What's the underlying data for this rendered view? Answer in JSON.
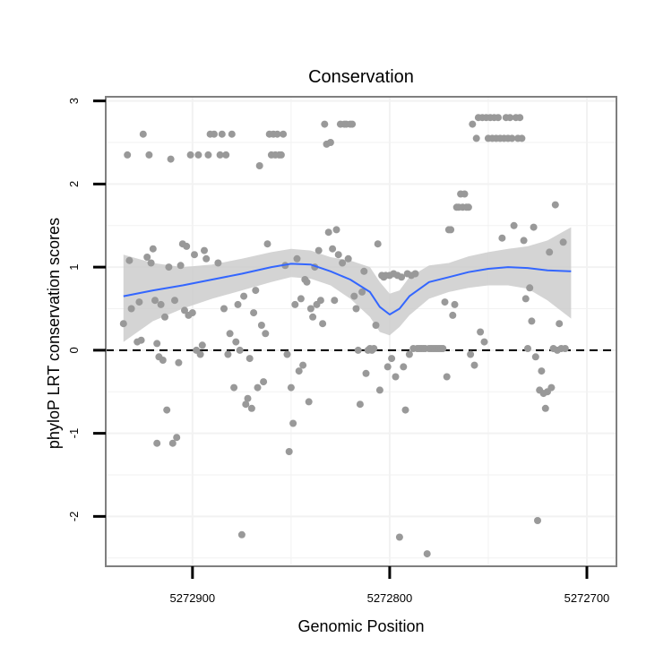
{
  "chart_data": {
    "type": "scatter",
    "title": "Conservation",
    "xlabel": "Genomic Position",
    "ylabel": "phyloP LRT conservation scores",
    "x_reversed": true,
    "xlim": [
      5272944,
      5272685
    ],
    "ylim": [
      -2.6,
      3.05
    ],
    "x_ticks": [
      5272900,
      5272800,
      5272700
    ],
    "y_ticks": [
      -2,
      -1,
      0,
      1,
      2,
      3
    ],
    "grid": true,
    "colors": {
      "points": "#999999",
      "smooth_line": "#3366ff",
      "confidence_band": "#cccccc",
      "reference_line": "#000000",
      "panel_border": "#7f7f7f",
      "grid": "#f2f2f2"
    },
    "reference_line": {
      "y": 0,
      "style": "dashed"
    },
    "points": [
      {
        "x": 5272935,
        "y": 0.32
      },
      {
        "x": 5272933,
        "y": 2.35
      },
      {
        "x": 5272932,
        "y": 1.08
      },
      {
        "x": 5272931,
        "y": 0.5
      },
      {
        "x": 5272928,
        "y": 0.1
      },
      {
        "x": 5272927,
        "y": 0.58
      },
      {
        "x": 5272926,
        "y": 0.12
      },
      {
        "x": 5272925,
        "y": 2.6
      },
      {
        "x": 5272923,
        "y": 1.12
      },
      {
        "x": 5272922,
        "y": 2.35
      },
      {
        "x": 5272921,
        "y": 1.05
      },
      {
        "x": 5272920,
        "y": 1.22
      },
      {
        "x": 5272919,
        "y": 0.6
      },
      {
        "x": 5272918,
        "y": 0.08
      },
      {
        "x": 5272918,
        "y": -1.12
      },
      {
        "x": 5272917,
        "y": -0.08
      },
      {
        "x": 5272916,
        "y": 0.55
      },
      {
        "x": 5272915,
        "y": -0.12
      },
      {
        "x": 5272914,
        "y": 0.4
      },
      {
        "x": 5272913,
        "y": -0.72
      },
      {
        "x": 5272912,
        "y": 1.0
      },
      {
        "x": 5272911,
        "y": 2.3
      },
      {
        "x": 5272910,
        "y": -1.12
      },
      {
        "x": 5272909,
        "y": 0.6
      },
      {
        "x": 5272908,
        "y": -1.05
      },
      {
        "x": 5272907,
        "y": -0.15
      },
      {
        "x": 5272906,
        "y": 1.02
      },
      {
        "x": 5272905,
        "y": 1.28
      },
      {
        "x": 5272904,
        "y": 0.48
      },
      {
        "x": 5272903,
        "y": 1.25
      },
      {
        "x": 5272902,
        "y": 0.42
      },
      {
        "x": 5272901,
        "y": 2.35
      },
      {
        "x": 5272900,
        "y": 0.45
      },
      {
        "x": 5272899,
        "y": 1.15
      },
      {
        "x": 5272898,
        "y": 0.0
      },
      {
        "x": 5272897,
        "y": 2.35
      },
      {
        "x": 5272896,
        "y": -0.05
      },
      {
        "x": 5272895,
        "y": 0.06
      },
      {
        "x": 5272894,
        "y": 1.2
      },
      {
        "x": 5272893,
        "y": 1.1
      },
      {
        "x": 5272892,
        "y": 2.35
      },
      {
        "x": 5272891,
        "y": 2.6
      },
      {
        "x": 5272889,
        "y": 2.6
      },
      {
        "x": 5272887,
        "y": 1.05
      },
      {
        "x": 5272886,
        "y": 2.35
      },
      {
        "x": 5272885,
        "y": 2.6
      },
      {
        "x": 5272884,
        "y": 0.5
      },
      {
        "x": 5272883,
        "y": 2.35
      },
      {
        "x": 5272882,
        "y": -0.05
      },
      {
        "x": 5272881,
        "y": 0.2
      },
      {
        "x": 5272880,
        "y": 2.6
      },
      {
        "x": 5272879,
        "y": -0.45
      },
      {
        "x": 5272878,
        "y": 0.1
      },
      {
        "x": 5272877,
        "y": 0.55
      },
      {
        "x": 5272876,
        "y": 0.0
      },
      {
        "x": 5272875,
        "y": -2.22
      },
      {
        "x": 5272874,
        "y": 0.65
      },
      {
        "x": 5272873,
        "y": -0.65
      },
      {
        "x": 5272872,
        "y": -0.58
      },
      {
        "x": 5272871,
        "y": -0.1
      },
      {
        "x": 5272870,
        "y": -0.7
      },
      {
        "x": 5272869,
        "y": 0.45
      },
      {
        "x": 5272868,
        "y": 0.72
      },
      {
        "x": 5272867,
        "y": -0.45
      },
      {
        "x": 5272866,
        "y": 2.22
      },
      {
        "x": 5272865,
        "y": 0.3
      },
      {
        "x": 5272864,
        "y": -0.38
      },
      {
        "x": 5272863,
        "y": 0.2
      },
      {
        "x": 5272862,
        "y": 1.28
      },
      {
        "x": 5272861,
        "y": 2.6
      },
      {
        "x": 5272860,
        "y": 2.35
      },
      {
        "x": 5272859,
        "y": 2.6
      },
      {
        "x": 5272858,
        "y": 2.35
      },
      {
        "x": 5272857,
        "y": 2.6
      },
      {
        "x": 5272856,
        "y": 2.35
      },
      {
        "x": 5272855,
        "y": 2.35
      },
      {
        "x": 5272854,
        "y": 2.6
      },
      {
        "x": 5272853,
        "y": 1.02
      },
      {
        "x": 5272852,
        "y": -0.05
      },
      {
        "x": 5272851,
        "y": -1.22
      },
      {
        "x": 5272850,
        "y": -0.45
      },
      {
        "x": 5272849,
        "y": -0.88
      },
      {
        "x": 5272848,
        "y": 0.55
      },
      {
        "x": 5272847,
        "y": 1.1
      },
      {
        "x": 5272846,
        "y": -0.25
      },
      {
        "x": 5272845,
        "y": 0.62
      },
      {
        "x": 5272844,
        "y": -0.18
      },
      {
        "x": 5272843,
        "y": 0.85
      },
      {
        "x": 5272842,
        "y": 0.82
      },
      {
        "x": 5272841,
        "y": -0.62
      },
      {
        "x": 5272840,
        "y": 0.5
      },
      {
        "x": 5272839,
        "y": 0.4
      },
      {
        "x": 5272838,
        "y": 1.0
      },
      {
        "x": 5272837,
        "y": 0.55
      },
      {
        "x": 5272836,
        "y": 1.2
      },
      {
        "x": 5272835,
        "y": 0.6
      },
      {
        "x": 5272834,
        "y": 0.32
      },
      {
        "x": 5272833,
        "y": 2.72
      },
      {
        "x": 5272832,
        "y": 2.48
      },
      {
        "x": 5272831,
        "y": 1.42
      },
      {
        "x": 5272830,
        "y": 2.5
      },
      {
        "x": 5272829,
        "y": 1.22
      },
      {
        "x": 5272828,
        "y": 0.6
      },
      {
        "x": 5272827,
        "y": 1.45
      },
      {
        "x": 5272826,
        "y": 1.15
      },
      {
        "x": 5272825,
        "y": 2.72
      },
      {
        "x": 5272824,
        "y": 1.05
      },
      {
        "x": 5272823,
        "y": 2.72
      },
      {
        "x": 5272822,
        "y": 2.72
      },
      {
        "x": 5272821,
        "y": 1.1
      },
      {
        "x": 5272820,
        "y": 2.72
      },
      {
        "x": 5272819,
        "y": 2.72
      },
      {
        "x": 5272818,
        "y": 0.65
      },
      {
        "x": 5272817,
        "y": 0.5
      },
      {
        "x": 5272816,
        "y": 0.0
      },
      {
        "x": 5272815,
        "y": -0.65
      },
      {
        "x": 5272814,
        "y": 0.7
      },
      {
        "x": 5272813,
        "y": 0.95
      },
      {
        "x": 5272812,
        "y": -0.28
      },
      {
        "x": 5272811,
        "y": 0.0
      },
      {
        "x": 5272810,
        "y": 0.02
      },
      {
        "x": 5272809,
        "y": 0.0
      },
      {
        "x": 5272808,
        "y": 0.02
      },
      {
        "x": 5272807,
        "y": 0.3
      },
      {
        "x": 5272806,
        "y": 1.28
      },
      {
        "x": 5272805,
        "y": -0.48
      },
      {
        "x": 5272804,
        "y": 0.9
      },
      {
        "x": 5272803,
        "y": 0.88
      },
      {
        "x": 5272802,
        "y": 0.9
      },
      {
        "x": 5272801,
        "y": -0.2
      },
      {
        "x": 5272800,
        "y": 0.9
      },
      {
        "x": 5272799,
        "y": -0.1
      },
      {
        "x": 5272798,
        "y": 0.92
      },
      {
        "x": 5272797,
        "y": -0.32
      },
      {
        "x": 5272796,
        "y": 0.9
      },
      {
        "x": 5272795,
        "y": -2.25
      },
      {
        "x": 5272794,
        "y": 0.88
      },
      {
        "x": 5272793,
        "y": -0.2
      },
      {
        "x": 5272792,
        "y": -0.72
      },
      {
        "x": 5272791,
        "y": 0.92
      },
      {
        "x": 5272790,
        "y": -0.05
      },
      {
        "x": 5272789,
        "y": 0.9
      },
      {
        "x": 5272788,
        "y": 0.02
      },
      {
        "x": 5272787,
        "y": 0.92
      },
      {
        "x": 5272786,
        "y": 0.02
      },
      {
        "x": 5272785,
        "y": 0.02
      },
      {
        "x": 5272784,
        "y": 0.02
      },
      {
        "x": 5272783,
        "y": 0.02
      },
      {
        "x": 5272782,
        "y": 0.02
      },
      {
        "x": 5272781,
        "y": -2.45
      },
      {
        "x": 5272780,
        "y": 0.02
      },
      {
        "x": 5272779,
        "y": 0.02
      },
      {
        "x": 5272778,
        "y": 0.02
      },
      {
        "x": 5272777,
        "y": 0.02
      },
      {
        "x": 5272776,
        "y": 0.02
      },
      {
        "x": 5272775,
        "y": 0.02
      },
      {
        "x": 5272774,
        "y": 0.02
      },
      {
        "x": 5272773,
        "y": 0.02
      },
      {
        "x": 5272772,
        "y": 0.58
      },
      {
        "x": 5272771,
        "y": -0.32
      },
      {
        "x": 5272770,
        "y": 1.45
      },
      {
        "x": 5272769,
        "y": 1.45
      },
      {
        "x": 5272768,
        "y": 0.42
      },
      {
        "x": 5272767,
        "y": 0.55
      },
      {
        "x": 5272766,
        "y": 1.72
      },
      {
        "x": 5272765,
        "y": 1.72
      },
      {
        "x": 5272764,
        "y": 1.88
      },
      {
        "x": 5272763,
        "y": 1.72
      },
      {
        "x": 5272762,
        "y": 1.88
      },
      {
        "x": 5272761,
        "y": 1.72
      },
      {
        "x": 5272760,
        "y": 1.72
      },
      {
        "x": 5272759,
        "y": -0.05
      },
      {
        "x": 5272758,
        "y": 2.72
      },
      {
        "x": 5272757,
        "y": -0.18
      },
      {
        "x": 5272756,
        "y": 2.55
      },
      {
        "x": 5272755,
        "y": 2.8
      },
      {
        "x": 5272754,
        "y": 0.22
      },
      {
        "x": 5272753,
        "y": 2.8
      },
      {
        "x": 5272752,
        "y": 0.1
      },
      {
        "x": 5272751,
        "y": 2.8
      },
      {
        "x": 5272750,
        "y": 2.55
      },
      {
        "x": 5272749,
        "y": 2.8
      },
      {
        "x": 5272748,
        "y": 2.55
      },
      {
        "x": 5272747,
        "y": 2.8
      },
      {
        "x": 5272746,
        "y": 2.55
      },
      {
        "x": 5272745,
        "y": 2.8
      },
      {
        "x": 5272744,
        "y": 2.55
      },
      {
        "x": 5272743,
        "y": 1.35
      },
      {
        "x": 5272742,
        "y": 2.55
      },
      {
        "x": 5272741,
        "y": 2.8
      },
      {
        "x": 5272740,
        "y": 2.55
      },
      {
        "x": 5272739,
        "y": 2.8
      },
      {
        "x": 5272738,
        "y": 2.55
      },
      {
        "x": 5272737,
        "y": 1.5
      },
      {
        "x": 5272736,
        "y": 2.8
      },
      {
        "x": 5272735,
        "y": 2.55
      },
      {
        "x": 5272734,
        "y": 2.8
      },
      {
        "x": 5272733,
        "y": 2.55
      },
      {
        "x": 5272732,
        "y": 1.32
      },
      {
        "x": 5272731,
        "y": 0.62
      },
      {
        "x": 5272730,
        "y": 0.02
      },
      {
        "x": 5272729,
        "y": 0.75
      },
      {
        "x": 5272728,
        "y": 0.35
      },
      {
        "x": 5272727,
        "y": 1.48
      },
      {
        "x": 5272726,
        "y": -0.08
      },
      {
        "x": 5272725,
        "y": -2.05
      },
      {
        "x": 5272724,
        "y": -0.48
      },
      {
        "x": 5272723,
        "y": -0.25
      },
      {
        "x": 5272722,
        "y": -0.52
      },
      {
        "x": 5272721,
        "y": -0.7
      },
      {
        "x": 5272720,
        "y": -0.5
      },
      {
        "x": 5272719,
        "y": 1.18
      },
      {
        "x": 5272718,
        "y": -0.45
      },
      {
        "x": 5272717,
        "y": 0.02
      },
      {
        "x": 5272716,
        "y": 1.75
      },
      {
        "x": 5272715,
        "y": 0.0
      },
      {
        "x": 5272714,
        "y": 0.32
      },
      {
        "x": 5272713,
        "y": 0.02
      },
      {
        "x": 5272712,
        "y": 1.3
      },
      {
        "x": 5272711,
        "y": 0.02
      }
    ],
    "smooth": {
      "x": [
        5272935,
        5272920,
        5272905,
        5272890,
        5272875,
        5272860,
        5272850,
        5272840,
        5272830,
        5272820,
        5272810,
        5272805,
        5272800,
        5272795,
        5272790,
        5272780,
        5272770,
        5272760,
        5272750,
        5272740,
        5272730,
        5272720,
        5272708
      ],
      "y": [
        0.65,
        0.72,
        0.78,
        0.85,
        0.92,
        1.0,
        1.04,
        1.03,
        0.95,
        0.85,
        0.7,
        0.52,
        0.43,
        0.5,
        0.65,
        0.82,
        0.88,
        0.94,
        0.98,
        1.0,
        0.99,
        0.96,
        0.95
      ],
      "lower": [
        0.1,
        0.35,
        0.5,
        0.62,
        0.72,
        0.82,
        0.88,
        0.86,
        0.78,
        0.62,
        0.4,
        0.22,
        0.18,
        0.28,
        0.42,
        0.62,
        0.7,
        0.75,
        0.78,
        0.78,
        0.74,
        0.6,
        0.38
      ],
      "upper": [
        1.15,
        1.05,
        1.0,
        1.03,
        1.1,
        1.18,
        1.22,
        1.2,
        1.12,
        1.08,
        1.0,
        0.82,
        0.68,
        0.72,
        0.88,
        1.02,
        1.05,
        1.13,
        1.18,
        1.22,
        1.25,
        1.32,
        1.48
      ]
    }
  }
}
